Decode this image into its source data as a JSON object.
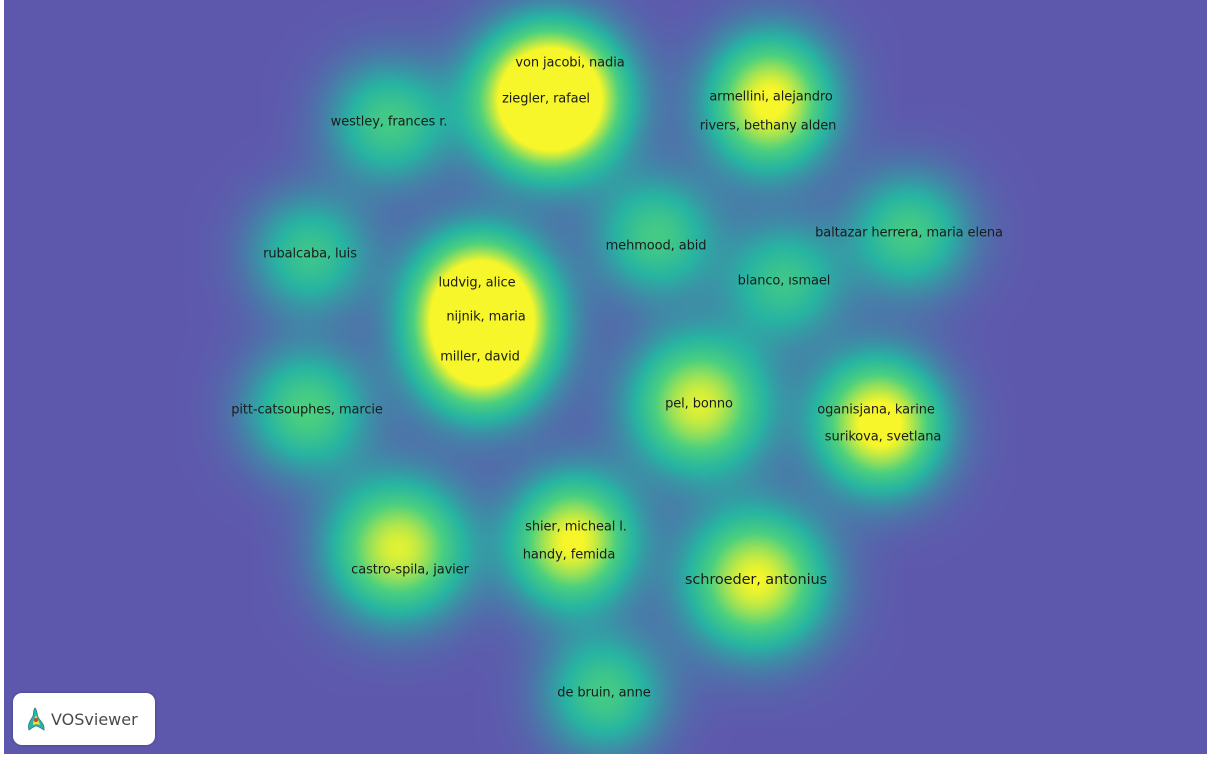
{
  "app": {
    "logo_text": "VOSviewer",
    "logo_icon": "vosviewer-logo-icon"
  },
  "colors": {
    "background": "#5e58ad",
    "density_low": "#27b4a2",
    "density_mid": "#4bd07f",
    "density_high": "#f6f62a"
  },
  "map": {
    "view": "density",
    "nodes": [
      {
        "label": "von jacobi, nadia",
        "weight": 0.9,
        "size": "normal"
      },
      {
        "label": "ziegler, rafael",
        "weight": 1.0,
        "size": "normal"
      },
      {
        "label": "westley, frances r.",
        "weight": 0.55,
        "size": "normal"
      },
      {
        "label": "armellini, alejandro",
        "weight": 0.55,
        "size": "normal"
      },
      {
        "label": "rivers, bethany alden",
        "weight": 0.6,
        "size": "normal"
      },
      {
        "label": "rubalcaba, luis",
        "weight": 0.5,
        "size": "normal"
      },
      {
        "label": "mehmood, abid",
        "weight": 0.55,
        "size": "normal"
      },
      {
        "label": "baltazar herrera, maria elena",
        "weight": 0.55,
        "size": "normal"
      },
      {
        "label": "blanco, ısmael",
        "weight": 0.5,
        "size": "normal"
      },
      {
        "label": "ludvig, alice",
        "weight": 0.75,
        "size": "normal"
      },
      {
        "label": "nijnik, maria",
        "weight": 0.85,
        "size": "normal"
      },
      {
        "label": "miller, david",
        "weight": 0.8,
        "size": "normal"
      },
      {
        "label": "pitt-catsouphes, marcie",
        "weight": 0.6,
        "size": "normal"
      },
      {
        "label": "pel, bonno",
        "weight": 0.95,
        "size": "normal"
      },
      {
        "label": "oganisjana, karine",
        "weight": 0.6,
        "size": "normal"
      },
      {
        "label": "surikova, svetlana",
        "weight": 0.6,
        "size": "normal"
      },
      {
        "label": "shier, micheal l.",
        "weight": 0.55,
        "size": "normal"
      },
      {
        "label": "handy, femida",
        "weight": 0.55,
        "size": "normal"
      },
      {
        "label": "castro-spila, javier",
        "weight": 0.95,
        "size": "normal"
      },
      {
        "label": "schroeder, antonius",
        "weight": 1.0,
        "size": "big"
      },
      {
        "label": "de bruin, anne",
        "weight": 0.55,
        "size": "normal"
      }
    ]
  }
}
